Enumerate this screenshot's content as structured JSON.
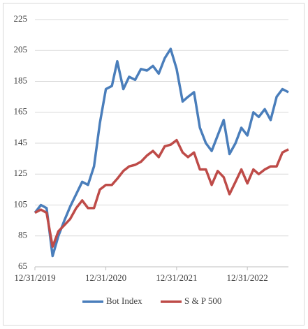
{
  "chart_data": {
    "type": "line",
    "x": [
      "12/31/2019",
      "1/31/2020",
      "2/29/2020",
      "3/31/2020",
      "4/30/2020",
      "5/31/2020",
      "6/30/2020",
      "7/31/2020",
      "8/31/2020",
      "9/30/2020",
      "10/31/2020",
      "11/30/2020",
      "12/31/2020",
      "1/31/2021",
      "2/28/2021",
      "3/31/2021",
      "4/30/2021",
      "5/31/2021",
      "6/30/2021",
      "7/31/2021",
      "8/31/2021",
      "9/30/2021",
      "10/31/2021",
      "11/30/2021",
      "12/31/2021",
      "1/31/2022",
      "2/28/2022",
      "3/31/2022",
      "4/30/2022",
      "5/31/2022",
      "6/30/2022",
      "7/31/2022",
      "8/31/2022",
      "9/30/2022",
      "10/31/2022",
      "11/30/2022",
      "12/31/2022",
      "1/31/2023",
      "2/28/2023",
      "3/31/2023",
      "4/30/2023",
      "5/31/2023",
      "6/30/2023",
      "7/31/2023"
    ],
    "series": [
      {
        "name": "Bot Index",
        "color": "#4a7ebb",
        "values": [
          100,
          105,
          103,
          72,
          85,
          95,
          104,
          112,
          120,
          118,
          130,
          158,
          180,
          182,
          198,
          180,
          188,
          186,
          193,
          192,
          195,
          190,
          200,
          206,
          193,
          172,
          175,
          178,
          155,
          145,
          140,
          150,
          160,
          138,
          145,
          155,
          150,
          165,
          162,
          167,
          160,
          175,
          180,
          178
        ]
      },
      {
        "name": "S & P 500",
        "color": "#be4b48",
        "values": [
          100,
          102,
          100,
          78,
          88,
          92,
          96,
          103,
          108,
          103,
          103,
          115,
          118,
          118,
          122,
          127,
          130,
          131,
          133,
          137,
          140,
          136,
          143,
          144,
          147,
          139,
          136,
          139,
          128,
          128,
          118,
          127,
          123,
          112,
          120,
          128,
          119,
          128,
          125,
          128,
          130,
          130,
          139,
          141
        ]
      }
    ],
    "xlim": [
      "12/31/2019",
      "7/31/2023"
    ],
    "xticks": [
      "12/31/2019",
      "12/31/2020",
      "12/31/2021",
      "12/31/2022"
    ],
    "ylim": [
      65,
      225
    ],
    "yticks": [
      65,
      85,
      105,
      125,
      145,
      165,
      185,
      205,
      225
    ],
    "grid": true,
    "legend": "bottom"
  }
}
